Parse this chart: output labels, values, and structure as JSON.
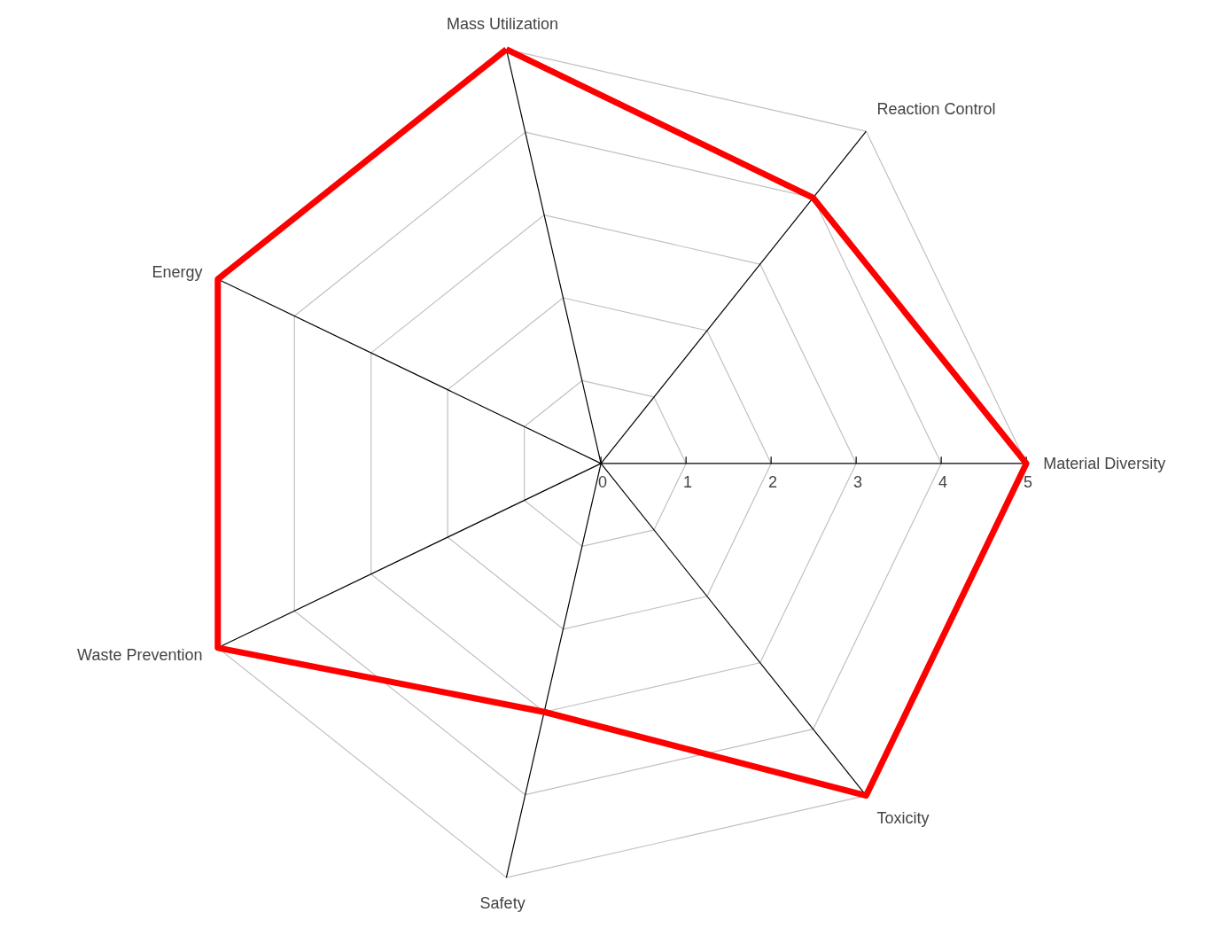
{
  "chart_data": {
    "type": "radar",
    "categories": [
      "Mass Utilization",
      "Reaction Control",
      "Material Diversity",
      "Toxicity",
      "Safety",
      "Waste Prevention",
      "Energy"
    ],
    "series": [
      {
        "color": "#ff0000",
        "values": [
          5,
          4,
          5,
          5,
          3,
          5,
          5
        ]
      }
    ],
    "ylim": [
      0,
      5
    ],
    "yticks": [
      0,
      1,
      2,
      3,
      4,
      5
    ],
    "grid": true,
    "marker": "none",
    "line_style": "solid"
  }
}
